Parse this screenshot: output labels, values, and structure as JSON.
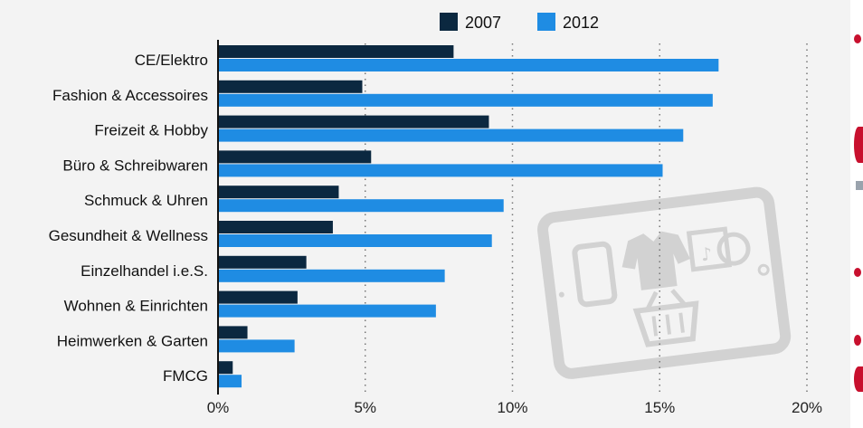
{
  "chart_data": {
    "type": "bar",
    "orientation": "horizontal",
    "categories": [
      "CE/Elektro",
      "Fashion & Accessoires",
      "Freizeit & Hobby",
      "Büro & Schreibwaren",
      "Schmuck & Uhren",
      "Gesundheit & Wellness",
      "Einzelhandel i.e.S.",
      "Wohnen & Einrichten",
      "Heimwerken & Garten",
      "FMCG"
    ],
    "series": [
      {
        "name": "2007",
        "color": "#0b2840",
        "values": [
          8.0,
          4.9,
          9.2,
          5.2,
          4.1,
          3.9,
          3.0,
          2.7,
          1.0,
          0.5
        ]
      },
      {
        "name": "2012",
        "color": "#1f8ce3",
        "values": [
          17.0,
          16.8,
          15.8,
          15.1,
          9.7,
          9.3,
          7.7,
          7.4,
          2.6,
          0.8
        ]
      }
    ],
    "xlim": [
      0,
      20
    ],
    "xticks": [
      0,
      5,
      10,
      15,
      20
    ],
    "tick_suffix": "%",
    "grid": "vertical dotted",
    "legend_position": "top",
    "xlabel": "",
    "ylabel": ""
  },
  "watermark": {
    "icons": [
      "tablet-icon",
      "smartphone-icon",
      "clothing-icon",
      "music-media-icon",
      "shopping-basket-icon"
    ]
  }
}
